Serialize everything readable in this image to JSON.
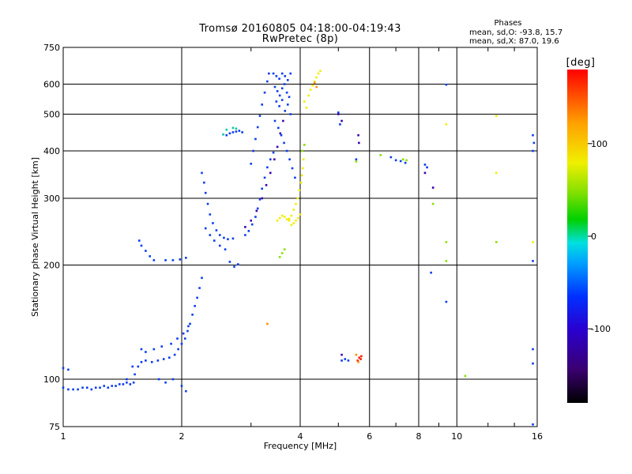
{
  "chart_data": {
    "type": "scatter",
    "title": "Tromsø 20160805 04:18:00-04:19:43",
    "subtitle": "RwPretec (8p)",
    "xlabel": "Frequency [MHz]",
    "ylabel": "Stationary phase Virtual Height [km]",
    "x_scale": "log",
    "y_scale": "log",
    "xlim": [
      1,
      16
    ],
    "ylim": [
      75,
      750
    ],
    "x_ticks": [
      1,
      2,
      4,
      6,
      8,
      10,
      16
    ],
    "x_ticklabels": [
      "1",
      "2",
      "4",
      "6",
      "8",
      "10",
      "16"
    ],
    "x_minor_ticks": [
      3,
      5,
      7,
      9,
      12,
      14
    ],
    "y_ticks": [
      75,
      100,
      200,
      300,
      400,
      500,
      600,
      750
    ],
    "y_ticklabels": [
      "75",
      "100",
      "200",
      "300",
      "400",
      "500",
      "600",
      "750"
    ],
    "grid": true,
    "stats": {
      "header": "Phases",
      "line_o": "mean, sd,O: -93.8, 15.7",
      "line_x": "mean, sd,X: 87.0, 19.6"
    },
    "colorbar": {
      "label": "[deg]",
      "range": [
        -180,
        180
      ],
      "ticks": [
        100,
        0,
        -100
      ],
      "ticklabels": [
        "100",
        "0",
        "-100"
      ],
      "colormap": "rainbow"
    },
    "series": [
      {
        "color_value": -100,
        "color": "#0a3cf0",
        "points": [
          [
            1.0,
            95
          ],
          [
            1.03,
            94
          ],
          [
            1.06,
            94
          ],
          [
            1.09,
            94
          ],
          [
            1.12,
            95
          ],
          [
            1.15,
            95
          ],
          [
            1.18,
            94
          ],
          [
            1.21,
            95
          ],
          [
            1.24,
            95
          ],
          [
            1.27,
            96
          ],
          [
            1.3,
            95
          ],
          [
            1.33,
            96
          ],
          [
            1.36,
            96
          ],
          [
            1.39,
            97
          ],
          [
            1.42,
            97
          ],
          [
            1.45,
            98
          ],
          [
            1.48,
            97
          ],
          [
            1.51,
            98
          ],
          [
            1.0,
            107
          ],
          [
            1.03,
            106
          ],
          [
            1.45,
            100
          ],
          [
            1.52,
            103
          ],
          [
            1.5,
            108
          ],
          [
            1.55,
            108
          ],
          [
            1.58,
            111
          ],
          [
            1.62,
            112
          ],
          [
            1.68,
            111
          ],
          [
            1.74,
            112
          ],
          [
            1.8,
            113
          ],
          [
            1.86,
            114
          ],
          [
            1.92,
            116
          ],
          [
            1.96,
            120
          ],
          [
            2.0,
            124
          ],
          [
            2.04,
            128
          ],
          [
            2.07,
            134
          ],
          [
            2.1,
            140
          ],
          [
            2.13,
            148
          ],
          [
            2.16,
            156
          ],
          [
            2.19,
            164
          ],
          [
            2.22,
            174
          ],
          [
            2.25,
            185
          ],
          [
            1.58,
            120
          ],
          [
            1.62,
            118
          ],
          [
            1.7,
            120
          ],
          [
            1.78,
            122
          ],
          [
            1.88,
            124
          ],
          [
            1.95,
            128
          ],
          [
            2.02,
            132
          ],
          [
            2.08,
            138
          ],
          [
            1.75,
            100
          ],
          [
            1.82,
            98
          ],
          [
            1.9,
            100
          ],
          [
            2.0,
            96
          ],
          [
            2.05,
            93
          ],
          [
            1.56,
            232
          ],
          [
            1.58,
            225
          ],
          [
            1.62,
            218
          ],
          [
            1.66,
            211
          ],
          [
            1.7,
            206
          ],
          [
            1.82,
            206
          ],
          [
            1.9,
            206
          ],
          [
            1.98,
            207
          ],
          [
            2.05,
            209
          ],
          [
            2.25,
            350
          ],
          [
            2.28,
            330
          ],
          [
            2.3,
            310
          ],
          [
            2.33,
            290
          ],
          [
            2.36,
            272
          ],
          [
            2.4,
            258
          ],
          [
            2.45,
            247
          ],
          [
            2.5,
            240
          ],
          [
            2.56,
            236
          ],
          [
            2.62,
            234
          ],
          [
            2.7,
            235
          ],
          [
            2.3,
            250
          ],
          [
            2.36,
            240
          ],
          [
            2.42,
            232
          ],
          [
            2.5,
            225
          ],
          [
            2.58,
            220
          ],
          [
            2.65,
            204
          ],
          [
            2.72,
            198
          ],
          [
            2.78,
            201
          ],
          [
            2.6,
            440
          ],
          [
            2.65,
            445
          ],
          [
            2.7,
            448
          ],
          [
            2.75,
            450
          ],
          [
            2.8,
            452
          ],
          [
            2.85,
            448
          ],
          [
            2.9,
            240
          ],
          [
            2.96,
            246
          ],
          [
            3.02,
            256
          ],
          [
            3.08,
            268
          ],
          [
            3.12,
            282
          ],
          [
            3.16,
            298
          ],
          [
            3.2,
            318
          ],
          [
            3.25,
            340
          ],
          [
            3.3,
            362
          ],
          [
            3.36,
            380
          ],
          [
            3.42,
            396
          ],
          [
            3.0,
            370
          ],
          [
            3.04,
            400
          ],
          [
            3.08,
            430
          ],
          [
            3.12,
            462
          ],
          [
            3.16,
            495
          ],
          [
            3.2,
            530
          ],
          [
            3.25,
            570
          ],
          [
            3.3,
            610
          ],
          [
            3.33,
            640
          ],
          [
            3.42,
            640
          ],
          [
            3.48,
            630
          ],
          [
            3.54,
            620
          ],
          [
            3.6,
            640
          ],
          [
            3.66,
            630
          ],
          [
            3.72,
            615
          ],
          [
            3.78,
            640
          ],
          [
            3.45,
            590
          ],
          [
            3.5,
            575
          ],
          [
            3.55,
            560
          ],
          [
            3.6,
            585
          ],
          [
            3.65,
            600
          ],
          [
            3.7,
            570
          ],
          [
            3.75,
            555
          ],
          [
            3.48,
            540
          ],
          [
            3.54,
            525
          ],
          [
            3.6,
            545
          ],
          [
            3.66,
            510
          ],
          [
            3.72,
            530
          ],
          [
            3.78,
            500
          ],
          [
            3.45,
            480
          ],
          [
            3.52,
            460
          ],
          [
            3.58,
            440
          ],
          [
            3.64,
            420
          ],
          [
            3.7,
            400
          ],
          [
            3.76,
            380
          ],
          [
            3.82,
            360
          ],
          [
            3.88,
            340
          ],
          [
            5.0,
            505
          ],
          [
            5.05,
            470
          ],
          [
            5.55,
            380
          ],
          [
            6.8,
            385
          ],
          [
            7.0,
            378
          ],
          [
            7.2,
            376
          ],
          [
            7.4,
            372
          ],
          [
            8.3,
            368
          ],
          [
            8.4,
            362
          ],
          [
            5.1,
            112
          ],
          [
            5.2,
            113
          ],
          [
            5.3,
            112
          ],
          [
            9.4,
            598
          ],
          [
            9.4,
            160
          ],
          [
            8.6,
            191
          ],
          [
            15.6,
            205
          ],
          [
            15.6,
            440
          ],
          [
            15.7,
            420
          ],
          [
            15.6,
            400
          ],
          [
            15.6,
            110
          ],
          [
            15.6,
            120
          ],
          [
            15.6,
            76
          ]
        ]
      },
      {
        "color_value": -130,
        "color": "#3a00b0",
        "points": [
          [
            2.9,
            252
          ],
          [
            3.0,
            262
          ],
          [
            3.1,
            278
          ],
          [
            3.2,
            300
          ],
          [
            3.28,
            325
          ],
          [
            3.36,
            350
          ],
          [
            3.44,
            380
          ],
          [
            3.5,
            410
          ],
          [
            3.56,
            445
          ],
          [
            3.62,
            480
          ],
          [
            5.0,
            500
          ],
          [
            5.1,
            480
          ],
          [
            5.62,
            440
          ],
          [
            5.64,
            420
          ],
          [
            8.3,
            350
          ],
          [
            8.7,
            320
          ],
          [
            5.1,
            116
          ]
        ]
      },
      {
        "color_value": 100,
        "color": "#f0ee00",
        "points": [
          [
            3.5,
            262
          ],
          [
            3.55,
            266
          ],
          [
            3.6,
            270
          ],
          [
            3.65,
            268
          ],
          [
            3.7,
            264
          ],
          [
            3.75,
            265
          ],
          [
            3.8,
            270
          ],
          [
            3.85,
            280
          ],
          [
            3.9,
            290
          ],
          [
            3.94,
            300
          ],
          [
            3.98,
            315
          ],
          [
            4.02,
            330
          ],
          [
            4.04,
            345
          ],
          [
            4.06,
            360
          ],
          [
            4.08,
            380
          ],
          [
            3.75,
            262
          ],
          [
            3.8,
            255
          ],
          [
            3.85,
            258
          ],
          [
            3.9,
            262
          ],
          [
            3.95,
            266
          ],
          [
            4.0,
            272
          ],
          [
            4.2,
            560
          ],
          [
            4.25,
            580
          ],
          [
            4.3,
            595
          ],
          [
            4.35,
            610
          ],
          [
            4.4,
            625
          ],
          [
            4.45,
            640
          ],
          [
            4.5,
            650
          ],
          [
            4.1,
            540
          ],
          [
            4.15,
            520
          ],
          [
            12.6,
            350
          ],
          [
            9.4,
            470
          ],
          [
            12.6,
            495
          ],
          [
            15.6,
            230
          ]
        ]
      },
      {
        "color_value": 60,
        "color": "#88e000",
        "points": [
          [
            3.55,
            210
          ],
          [
            3.6,
            215
          ],
          [
            3.65,
            220
          ],
          [
            4.1,
            415
          ],
          [
            4.05,
            400
          ],
          [
            6.4,
            390
          ],
          [
            7.3,
            380
          ],
          [
            7.45,
            378
          ],
          [
            5.55,
            375
          ],
          [
            9.4,
            230
          ],
          [
            12.6,
            230
          ],
          [
            9.4,
            205
          ],
          [
            8.7,
            290
          ],
          [
            10.5,
            102
          ]
        ]
      },
      {
        "color_value": 0,
        "color": "#00c8a0",
        "points": [
          [
            2.6,
            455
          ],
          [
            2.7,
            460
          ],
          [
            2.75,
            458
          ],
          [
            2.55,
            442
          ]
        ]
      },
      {
        "color_value": 150,
        "color": "#ff1a00",
        "points": [
          [
            5.65,
            114
          ],
          [
            5.7,
            113
          ],
          [
            5.72,
            115
          ],
          [
            5.6,
            112
          ]
        ]
      },
      {
        "color_value": 130,
        "color": "#ff9000",
        "points": [
          [
            5.55,
            116
          ],
          [
            5.62,
            111
          ],
          [
            4.35,
            605
          ],
          [
            4.4,
            590
          ],
          [
            3.3,
            140
          ]
        ]
      }
    ]
  }
}
